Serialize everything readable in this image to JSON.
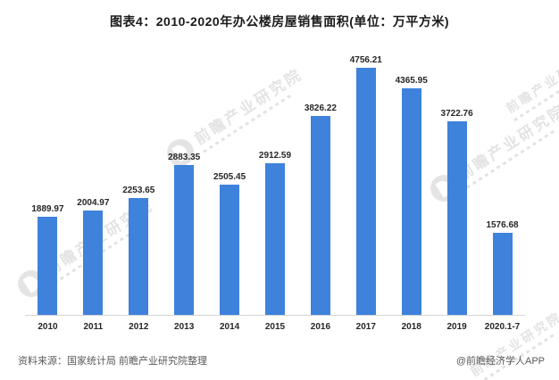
{
  "title": "图表4：2010-2020年办公楼房屋销售面积(单位：万平方米)",
  "chart_data": {
    "type": "bar",
    "title": "图表4：2010-2020年办公楼房屋销售面积(单位：万平方米)",
    "unit": "万平方米",
    "categories": [
      "2010",
      "2011",
      "2012",
      "2013",
      "2014",
      "2015",
      "2016",
      "2017",
      "2018",
      "2019",
      "2020.1-7"
    ],
    "values": [
      1889.97,
      2004.97,
      2253.65,
      2883.35,
      2505.45,
      2912.59,
      3826.22,
      4756.21,
      4365.95,
      3722.76,
      1576.68
    ],
    "xlabel": "",
    "ylabel": "",
    "ylim": [
      0,
      4756.21
    ],
    "grid": false,
    "legend": false,
    "data_labels": true
  },
  "colors": {
    "bar": "#3E82DC",
    "axis": "#d5d5d5",
    "label": "#262626",
    "footer": "#595959",
    "watermark": "#c9c9c9"
  },
  "watermark": {
    "text": "前瞻产业研究院"
  },
  "footer": {
    "source": "资料来源：国家统计局 前瞻产业研究院整理",
    "credit": "@前瞻经济学人APP"
  }
}
